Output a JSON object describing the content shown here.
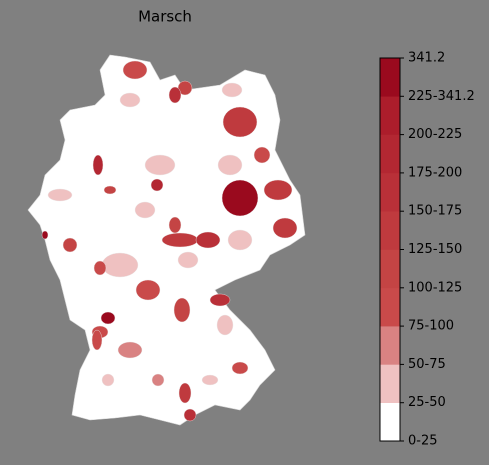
{
  "map": {
    "title": "Marsch",
    "colorbar": {
      "labels": [
        "0-25",
        "25-50",
        "50-75",
        "75-100",
        "100-125",
        "125-150",
        "150-175",
        "175-200",
        "200-225",
        "225-341.2",
        "341.2"
      ],
      "colors": [
        "#ffffff",
        "#efc1c1",
        "#d98282",
        "#c94a4a",
        "#c44444",
        "#bf3a3e",
        "#b93038",
        "#b32732",
        "#ac1d2b",
        "#a21425",
        "#9a0a1e"
      ]
    }
  }
}
